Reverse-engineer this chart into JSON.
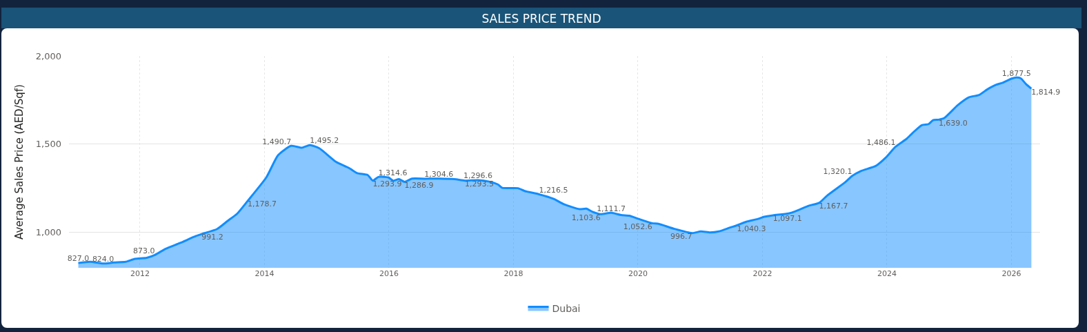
{
  "chart_data": {
    "type": "area",
    "title": "SALES PRICE TREND",
    "ylabel": "Average Sales Price (AED/Sqf)",
    "xlim": [
      2010.86,
      2026.46
    ],
    "xticks": [
      2012,
      2014,
      2016,
      2018,
      2020,
      2022,
      2024,
      2026
    ],
    "ylim": [
      800,
      2000
    ],
    "yticks": [
      {
        "value": 1000,
        "label": "1,000"
      },
      {
        "value": 1500,
        "label": "1,500"
      },
      {
        "value": 2000,
        "label": "2,000"
      }
    ],
    "grid": true,
    "legend": "bottom",
    "marker": "none",
    "line_style": "solid",
    "x": [
      2011.01,
      2011.2,
      2011.41,
      2011.58,
      2011.77,
      2011.92,
      2012.11,
      2012.24,
      2012.41,
      2012.64,
      2012.9,
      2012.99,
      2013.24,
      2013.41,
      2013.56,
      2013.73,
      2014.03,
      2014.22,
      2014.43,
      2014.6,
      2014.73,
      2014.88,
      2015.15,
      2015.36,
      2015.49,
      2015.66,
      2015.74,
      2015.83,
      2015.99,
      2016.07,
      2016.16,
      2016.25,
      2016.37,
      2016.57,
      2016.8,
      2017.05,
      2017.22,
      2017.43,
      2017.61,
      2017.75,
      2017.82,
      2018.07,
      2018.18,
      2018.41,
      2018.64,
      2018.81,
      2019.06,
      2019.17,
      2019.27,
      2019.4,
      2019.57,
      2019.73,
      2019.86,
      2020.01,
      2020.23,
      2020.33,
      2020.58,
      2020.87,
      2021.01,
      2021.16,
      2021.3,
      2021.48,
      2021.59,
      2021.74,
      2021.92,
      2022.03,
      2022.17,
      2022.42,
      2022.53,
      2022.75,
      2022.91,
      2023.04,
      2023.33,
      2023.44,
      2023.58,
      2023.82,
      2023.98,
      2024.14,
      2024.32,
      2024.41,
      2024.56,
      2024.67,
      2024.74,
      2024.83,
      2024.92,
      2025.14,
      2025.32,
      2025.48,
      2025.61,
      2025.75,
      2025.86,
      2026.0,
      2026.08,
      2026.15,
      2026.24,
      2026.32
    ],
    "series": [
      {
        "name": "Dubai",
        "color": "#118dff",
        "values": [
          827.0,
          834,
          824.0,
          830,
          834,
          851,
          857,
          873.0,
          907,
          940,
          980,
          991.2,
          1020,
          1066,
          1106,
          1178.7,
          1312,
          1438,
          1490.7,
          1480,
          1495.2,
          1477,
          1400,
          1365,
          1336,
          1325,
          1293.9,
          1314.6,
          1312,
          1293,
          1302,
          1286.9,
          1305,
          1304.6,
          1305,
          1302,
          1293.5,
          1296.6,
          1288,
          1272,
          1253,
          1251,
          1235,
          1216.5,
          1191,
          1160,
          1132,
          1135,
          1117,
          1103.6,
          1111.7,
          1099,
          1095,
          1077,
          1052.6,
          1049,
          1021,
          996.7,
          1006,
          1000,
          1006,
          1028,
          1040.3,
          1061,
          1076,
          1089,
          1097.1,
          1108,
          1120,
          1152,
          1167.7,
          1209,
          1285,
          1320.1,
          1348,
          1377,
          1424,
          1486.1,
          1532,
          1563,
          1608,
          1614,
          1636,
          1639.0,
          1648,
          1722,
          1766,
          1779,
          1810,
          1836,
          1848,
          1871,
          1877.5,
          1873,
          1838,
          1814.9
        ],
        "value_labels": [
          "827.0",
          null,
          "824.0",
          null,
          null,
          null,
          null,
          "873.0",
          null,
          null,
          null,
          "991.2",
          null,
          null,
          null,
          "1,178.7",
          null,
          null,
          "1,490.7",
          null,
          "1,495.2",
          null,
          null,
          null,
          null,
          null,
          "1,293.9",
          "1,314.6",
          null,
          null,
          null,
          "1,286.9",
          null,
          "1,304.6",
          null,
          null,
          "1,293.5",
          "1,296.6",
          null,
          null,
          null,
          null,
          null,
          "1,216.5",
          null,
          null,
          null,
          null,
          null,
          "1,103.6",
          "1,111.7",
          null,
          null,
          null,
          "1,052.6",
          null,
          null,
          "996.7",
          null,
          null,
          null,
          null,
          "1,040.3",
          null,
          null,
          null,
          "1,097.1",
          null,
          null,
          null,
          "1,167.7",
          null,
          null,
          "1,320.1",
          null,
          null,
          null,
          "1,486.1",
          null,
          null,
          null,
          null,
          null,
          "1,639.0",
          null,
          null,
          null,
          null,
          null,
          null,
          null,
          null,
          "1,877.5",
          null,
          null,
          "1,814.9"
        ]
      }
    ]
  }
}
